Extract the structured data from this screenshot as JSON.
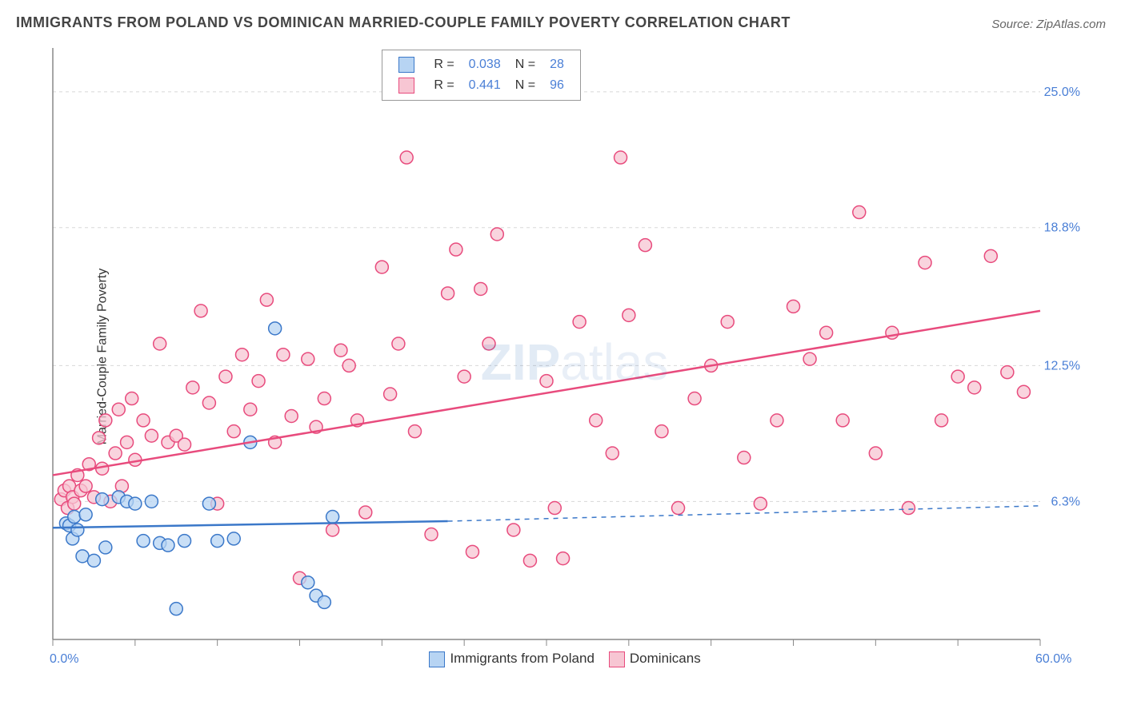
{
  "title": "IMMIGRANTS FROM POLAND VS DOMINICAN MARRIED-COUPLE FAMILY POVERTY CORRELATION CHART",
  "source_label": "Source: ",
  "source_name": "ZipAtlas.com",
  "y_axis_label": "Married-Couple Family Poverty",
  "watermark_a": "ZIP",
  "watermark_b": "atlas",
  "chart": {
    "type": "scatter",
    "background_color": "#ffffff",
    "axis_color": "#888888",
    "grid_color": "#d8d8d8",
    "grid_dash": "4,4",
    "xlim": [
      0,
      60
    ],
    "ylim": [
      0,
      27
    ],
    "x_ticks": [
      0,
      5,
      10,
      15,
      20,
      25,
      30,
      35,
      40,
      45,
      50,
      55,
      60
    ],
    "y_grid": [
      6.3,
      12.5,
      18.8,
      25.0
    ],
    "y_grid_labels": [
      "6.3%",
      "12.5%",
      "18.8%",
      "25.0%"
    ],
    "x_end_labels": [
      "0.0%",
      "60.0%"
    ],
    "marker_radius": 8,
    "marker_stroke_width": 1.5,
    "trend_line_width": 2.5
  },
  "legend_top": {
    "r_label": "R =",
    "n_label": "N =",
    "rows": [
      {
        "swatch_fill": "#b7d4f3",
        "swatch_stroke": "#3b78c9",
        "r": "0.038",
        "n": "28"
      },
      {
        "swatch_fill": "#f7c6d3",
        "swatch_stroke": "#e84b7d",
        "r": "0.441",
        "n": "96"
      }
    ]
  },
  "legend_bottom": {
    "items": [
      {
        "swatch_fill": "#b7d4f3",
        "swatch_stroke": "#3b78c9",
        "label": "Immigrants from Poland"
      },
      {
        "swatch_fill": "#f7c6d3",
        "swatch_stroke": "#e84b7d",
        "label": "Dominicans"
      }
    ]
  },
  "series": [
    {
      "name": "Immigrants from Poland",
      "color_fill": "#b7d4f3",
      "color_stroke": "#3b78c9",
      "trend": {
        "x1": 0,
        "y1": 5.1,
        "x2": 24,
        "y2": 5.4,
        "extend_x": 60,
        "extend_y": 6.1
      },
      "points": [
        [
          0.8,
          5.3
        ],
        [
          1.0,
          5.2
        ],
        [
          1.2,
          4.6
        ],
        [
          1.3,
          5.6
        ],
        [
          1.5,
          5.0
        ],
        [
          1.8,
          3.8
        ],
        [
          2.0,
          5.7
        ],
        [
          2.5,
          3.6
        ],
        [
          3.0,
          6.4
        ],
        [
          3.2,
          4.2
        ],
        [
          4.0,
          6.5
        ],
        [
          4.5,
          6.3
        ],
        [
          5.0,
          6.2
        ],
        [
          5.5,
          4.5
        ],
        [
          6.0,
          6.3
        ],
        [
          6.5,
          4.4
        ],
        [
          7.0,
          4.3
        ],
        [
          7.5,
          1.4
        ],
        [
          8.0,
          4.5
        ],
        [
          9.5,
          6.2
        ],
        [
          10.0,
          4.5
        ],
        [
          11.0,
          4.6
        ],
        [
          12.0,
          9.0
        ],
        [
          13.5,
          14.2
        ],
        [
          15.5,
          2.6
        ],
        [
          16.0,
          2.0
        ],
        [
          16.5,
          1.7
        ],
        [
          17.0,
          5.6
        ]
      ]
    },
    {
      "name": "Dominicans",
      "color_fill": "#f7c6d3",
      "color_stroke": "#e84b7d",
      "trend": {
        "x1": 0,
        "y1": 7.5,
        "x2": 60,
        "y2": 15.0
      },
      "points": [
        [
          0.5,
          6.4
        ],
        [
          0.7,
          6.8
        ],
        [
          0.9,
          6.0
        ],
        [
          1.0,
          7.0
        ],
        [
          1.2,
          6.5
        ],
        [
          1.3,
          6.2
        ],
        [
          1.5,
          7.5
        ],
        [
          1.7,
          6.8
        ],
        [
          2.0,
          7.0
        ],
        [
          2.2,
          8.0
        ],
        [
          2.5,
          6.5
        ],
        [
          2.8,
          9.2
        ],
        [
          3.0,
          7.8
        ],
        [
          3.2,
          10.0
        ],
        [
          3.5,
          6.3
        ],
        [
          3.8,
          8.5
        ],
        [
          4.0,
          10.5
        ],
        [
          4.2,
          7.0
        ],
        [
          4.5,
          9.0
        ],
        [
          4.8,
          11.0
        ],
        [
          5.0,
          8.2
        ],
        [
          5.5,
          10.0
        ],
        [
          6.0,
          9.3
        ],
        [
          6.5,
          13.5
        ],
        [
          7.0,
          9.0
        ],
        [
          7.5,
          9.3
        ],
        [
          8.0,
          8.9
        ],
        [
          8.5,
          11.5
        ],
        [
          9.0,
          15.0
        ],
        [
          9.5,
          10.8
        ],
        [
          10.0,
          6.2
        ],
        [
          10.5,
          12.0
        ],
        [
          11.0,
          9.5
        ],
        [
          11.5,
          13.0
        ],
        [
          12.0,
          10.5
        ],
        [
          12.5,
          11.8
        ],
        [
          13.0,
          15.5
        ],
        [
          13.5,
          9.0
        ],
        [
          14.0,
          13.0
        ],
        [
          14.5,
          10.2
        ],
        [
          15.0,
          2.8
        ],
        [
          15.5,
          12.8
        ],
        [
          16.0,
          9.7
        ],
        [
          16.5,
          11.0
        ],
        [
          17.0,
          5.0
        ],
        [
          17.5,
          13.2
        ],
        [
          18.0,
          12.5
        ],
        [
          18.5,
          10.0
        ],
        [
          19.0,
          5.8
        ],
        [
          20.0,
          17.0
        ],
        [
          20.5,
          11.2
        ],
        [
          21.0,
          13.5
        ],
        [
          21.5,
          22.0
        ],
        [
          22.0,
          9.5
        ],
        [
          23.0,
          4.8
        ],
        [
          24.0,
          15.8
        ],
        [
          24.5,
          17.8
        ],
        [
          25.0,
          12.0
        ],
        [
          25.5,
          4.0
        ],
        [
          26.0,
          16.0
        ],
        [
          26.5,
          13.5
        ],
        [
          27.0,
          18.5
        ],
        [
          28.0,
          5.0
        ],
        [
          29.0,
          3.6
        ],
        [
          30.0,
          11.8
        ],
        [
          30.5,
          6.0
        ],
        [
          31.0,
          3.7
        ],
        [
          32.0,
          14.5
        ],
        [
          33.0,
          10.0
        ],
        [
          34.0,
          8.5
        ],
        [
          34.5,
          22.0
        ],
        [
          35.0,
          14.8
        ],
        [
          36.0,
          18.0
        ],
        [
          37.0,
          9.5
        ],
        [
          38.0,
          6.0
        ],
        [
          39.0,
          11.0
        ],
        [
          40.0,
          12.5
        ],
        [
          41.0,
          14.5
        ],
        [
          42.0,
          8.3
        ],
        [
          43.0,
          6.2
        ],
        [
          44.0,
          10.0
        ],
        [
          45.0,
          15.2
        ],
        [
          46.0,
          12.8
        ],
        [
          47.0,
          14.0
        ],
        [
          48.0,
          10.0
        ],
        [
          49.0,
          19.5
        ],
        [
          50.0,
          8.5
        ],
        [
          51.0,
          14.0
        ],
        [
          52.0,
          6.0
        ],
        [
          53.0,
          17.2
        ],
        [
          54.0,
          10.0
        ],
        [
          55.0,
          12.0
        ],
        [
          56.0,
          11.5
        ],
        [
          57.0,
          17.5
        ],
        [
          58.0,
          12.2
        ],
        [
          59.0,
          11.3
        ]
      ]
    }
  ]
}
